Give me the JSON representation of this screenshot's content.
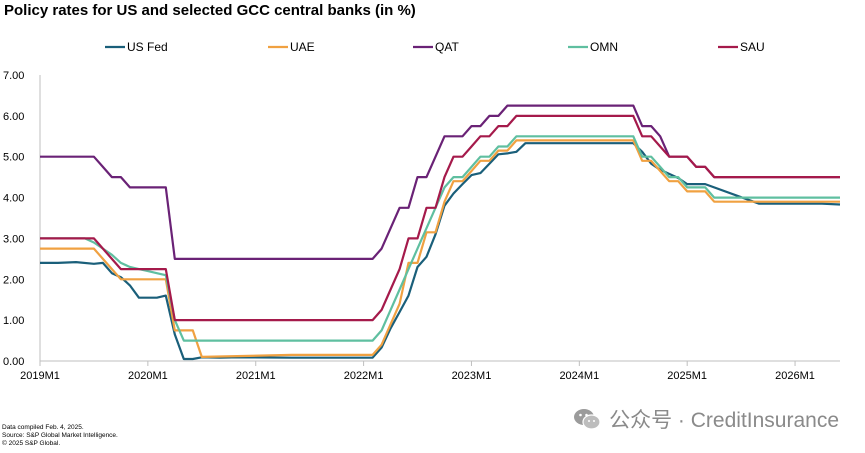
{
  "chart_data": {
    "type": "line",
    "title": "Policy rates for US and selected GCC central banks (in %)",
    "xlabel": "",
    "ylabel": "",
    "ylim": [
      0,
      7
    ],
    "yticks": [
      "0.00",
      "1.00",
      "2.00",
      "3.00",
      "4.00",
      "5.00",
      "6.00",
      "7.00"
    ],
    "xlim": [
      0,
      89
    ],
    "xticks": [
      {
        "x": 0,
        "label": "2019M1"
      },
      {
        "x": 12,
        "label": "2020M1"
      },
      {
        "x": 24,
        "label": "2021M1"
      },
      {
        "x": 36,
        "label": "2022M1"
      },
      {
        "x": 48,
        "label": "2023M1"
      },
      {
        "x": 60,
        "label": "2024M1"
      },
      {
        "x": 72,
        "label": "2025M1"
      },
      {
        "x": 84,
        "label": "2026M1"
      }
    ],
    "grid": false,
    "legend_position": "top",
    "series": [
      {
        "name": "US Fed",
        "color": "#1a5f7a",
        "points": [
          [
            0,
            2.4
          ],
          [
            2,
            2.4
          ],
          [
            4,
            2.42
          ],
          [
            6,
            2.38
          ],
          [
            7,
            2.4
          ],
          [
            8,
            2.15
          ],
          [
            9,
            2.05
          ],
          [
            10,
            1.85
          ],
          [
            11,
            1.55
          ],
          [
            13,
            1.55
          ],
          [
            14,
            1.6
          ],
          [
            15,
            0.65
          ],
          [
            16,
            0.05
          ],
          [
            17,
            0.05
          ],
          [
            18,
            0.09
          ],
          [
            20,
            0.08
          ],
          [
            22,
            0.09
          ],
          [
            28,
            0.08
          ],
          [
            34,
            0.08
          ],
          [
            37,
            0.08
          ],
          [
            38,
            0.33
          ],
          [
            39,
            0.8
          ],
          [
            40,
            1.2
          ],
          [
            41,
            1.6
          ],
          [
            42,
            2.3
          ],
          [
            43,
            2.55
          ],
          [
            44,
            3.1
          ],
          [
            45,
            3.8
          ],
          [
            46,
            4.1
          ],
          [
            47,
            4.33
          ],
          [
            48,
            4.55
          ],
          [
            49,
            4.6
          ],
          [
            50,
            4.83
          ],
          [
            51,
            5.06
          ],
          [
            52,
            5.08
          ],
          [
            53,
            5.12
          ],
          [
            54,
            5.33
          ],
          [
            63,
            5.33
          ],
          [
            66,
            5.33
          ],
          [
            67,
            5.12
          ],
          [
            68,
            4.83
          ],
          [
            69,
            4.68
          ],
          [
            70,
            4.58
          ],
          [
            71,
            4.48
          ],
          [
            72,
            4.33
          ],
          [
            74,
            4.33
          ],
          [
            80,
            3.85
          ],
          [
            82,
            3.85
          ],
          [
            87,
            3.85
          ],
          [
            89,
            3.83
          ]
        ]
      },
      {
        "name": "UAE",
        "color": "#f0a141",
        "points": [
          [
            0,
            2.75
          ],
          [
            6,
            2.75
          ],
          [
            7,
            2.5
          ],
          [
            8,
            2.25
          ],
          [
            9,
            2.0
          ],
          [
            13,
            2.0
          ],
          [
            14,
            2.0
          ],
          [
            15,
            0.75
          ],
          [
            16,
            0.75
          ],
          [
            17,
            0.75
          ],
          [
            18,
            0.1
          ],
          [
            28,
            0.15
          ],
          [
            37,
            0.15
          ],
          [
            38,
            0.4
          ],
          [
            39,
            0.9
          ],
          [
            40,
            1.4
          ],
          [
            41,
            2.4
          ],
          [
            42,
            2.4
          ],
          [
            43,
            3.15
          ],
          [
            44,
            3.15
          ],
          [
            45,
            3.9
          ],
          [
            46,
            4.4
          ],
          [
            47,
            4.4
          ],
          [
            48,
            4.65
          ],
          [
            49,
            4.9
          ],
          [
            50,
            4.9
          ],
          [
            51,
            5.15
          ],
          [
            52,
            5.15
          ],
          [
            53,
            5.4
          ],
          [
            66,
            5.4
          ],
          [
            67,
            4.9
          ],
          [
            68,
            4.9
          ],
          [
            69,
            4.65
          ],
          [
            70,
            4.4
          ],
          [
            71,
            4.4
          ],
          [
            72,
            4.15
          ],
          [
            73,
            4.15
          ],
          [
            74,
            4.15
          ],
          [
            75,
            3.9
          ],
          [
            89,
            3.9
          ]
        ]
      },
      {
        "name": "QAT",
        "color": "#6a2276",
        "points": [
          [
            0,
            5.0
          ],
          [
            6,
            5.0
          ],
          [
            7,
            4.75
          ],
          [
            8,
            4.5
          ],
          [
            9,
            4.5
          ],
          [
            10,
            4.25
          ],
          [
            13,
            4.25
          ],
          [
            14,
            4.25
          ],
          [
            15,
            2.5
          ],
          [
            37,
            2.5
          ],
          [
            38,
            2.75
          ],
          [
            39,
            3.25
          ],
          [
            40,
            3.75
          ],
          [
            41,
            3.75
          ],
          [
            42,
            4.5
          ],
          [
            43,
            4.5
          ],
          [
            44,
            5.0
          ],
          [
            45,
            5.5
          ],
          [
            46,
            5.5
          ],
          [
            47,
            5.5
          ],
          [
            48,
            5.75
          ],
          [
            49,
            5.75
          ],
          [
            50,
            6.0
          ],
          [
            51,
            6.0
          ],
          [
            52,
            6.25
          ],
          [
            66,
            6.25
          ],
          [
            67,
            5.75
          ],
          [
            68,
            5.75
          ],
          [
            69,
            5.5
          ],
          [
            70,
            5.0
          ],
          [
            71,
            5.0
          ],
          [
            72,
            5.0
          ],
          [
            73,
            4.75
          ],
          [
            74,
            4.75
          ],
          [
            75,
            4.5
          ],
          [
            89,
            4.5
          ]
        ]
      },
      {
        "name": "OMN",
        "color": "#5fbfa0",
        "points": [
          [
            0,
            3.0
          ],
          [
            5,
            3.0
          ],
          [
            6,
            2.9
          ],
          [
            7,
            2.75
          ],
          [
            8,
            2.6
          ],
          [
            9,
            2.4
          ],
          [
            10,
            2.3
          ],
          [
            11,
            2.25
          ],
          [
            12,
            2.2
          ],
          [
            13,
            2.15
          ],
          [
            14,
            2.1
          ],
          [
            15,
            1.0
          ],
          [
            16,
            0.5
          ],
          [
            37,
            0.5
          ],
          [
            38,
            0.75
          ],
          [
            39,
            1.25
          ],
          [
            40,
            1.75
          ],
          [
            41,
            2.25
          ],
          [
            42,
            2.75
          ],
          [
            43,
            3.25
          ],
          [
            44,
            3.75
          ],
          [
            45,
            4.25
          ],
          [
            46,
            4.5
          ],
          [
            47,
            4.5
          ],
          [
            48,
            4.75
          ],
          [
            49,
            5.0
          ],
          [
            50,
            5.0
          ],
          [
            51,
            5.25
          ],
          [
            52,
            5.25
          ],
          [
            53,
            5.5
          ],
          [
            66,
            5.5
          ],
          [
            67,
            5.0
          ],
          [
            68,
            5.0
          ],
          [
            69,
            4.75
          ],
          [
            70,
            4.5
          ],
          [
            71,
            4.5
          ],
          [
            72,
            4.25
          ],
          [
            73,
            4.25
          ],
          [
            74,
            4.25
          ],
          [
            75,
            4.0
          ],
          [
            89,
            4.0
          ]
        ]
      },
      {
        "name": "SAU",
        "color": "#a51a4b",
        "points": [
          [
            0,
            3.0
          ],
          [
            6,
            3.0
          ],
          [
            7,
            2.75
          ],
          [
            8,
            2.5
          ],
          [
            9,
            2.25
          ],
          [
            13,
            2.25
          ],
          [
            14,
            2.25
          ],
          [
            15,
            1.0
          ],
          [
            37,
            1.0
          ],
          [
            38,
            1.25
          ],
          [
            39,
            1.75
          ],
          [
            40,
            2.25
          ],
          [
            41,
            3.0
          ],
          [
            42,
            3.0
          ],
          [
            43,
            3.75
          ],
          [
            44,
            3.75
          ],
          [
            45,
            4.5
          ],
          [
            46,
            5.0
          ],
          [
            47,
            5.0
          ],
          [
            48,
            5.25
          ],
          [
            49,
            5.5
          ],
          [
            50,
            5.5
          ],
          [
            51,
            5.75
          ],
          [
            52,
            5.75
          ],
          [
            53,
            6.0
          ],
          [
            66,
            6.0
          ],
          [
            67,
            5.5
          ],
          [
            68,
            5.5
          ],
          [
            69,
            5.25
          ],
          [
            70,
            5.0
          ],
          [
            71,
            5.0
          ],
          [
            72,
            5.0
          ],
          [
            73,
            4.75
          ],
          [
            74,
            4.75
          ],
          [
            75,
            4.5
          ],
          [
            89,
            4.5
          ]
        ]
      }
    ]
  },
  "footnotes": [
    "Data compiled Feb. 4, 2025.",
    "Source: S&P Global Market Intelligence.",
    "© 2025 S&P Global."
  ],
  "watermark": {
    "text": "公众号 · CreditInsurance",
    "icon": "wechat-icon"
  }
}
